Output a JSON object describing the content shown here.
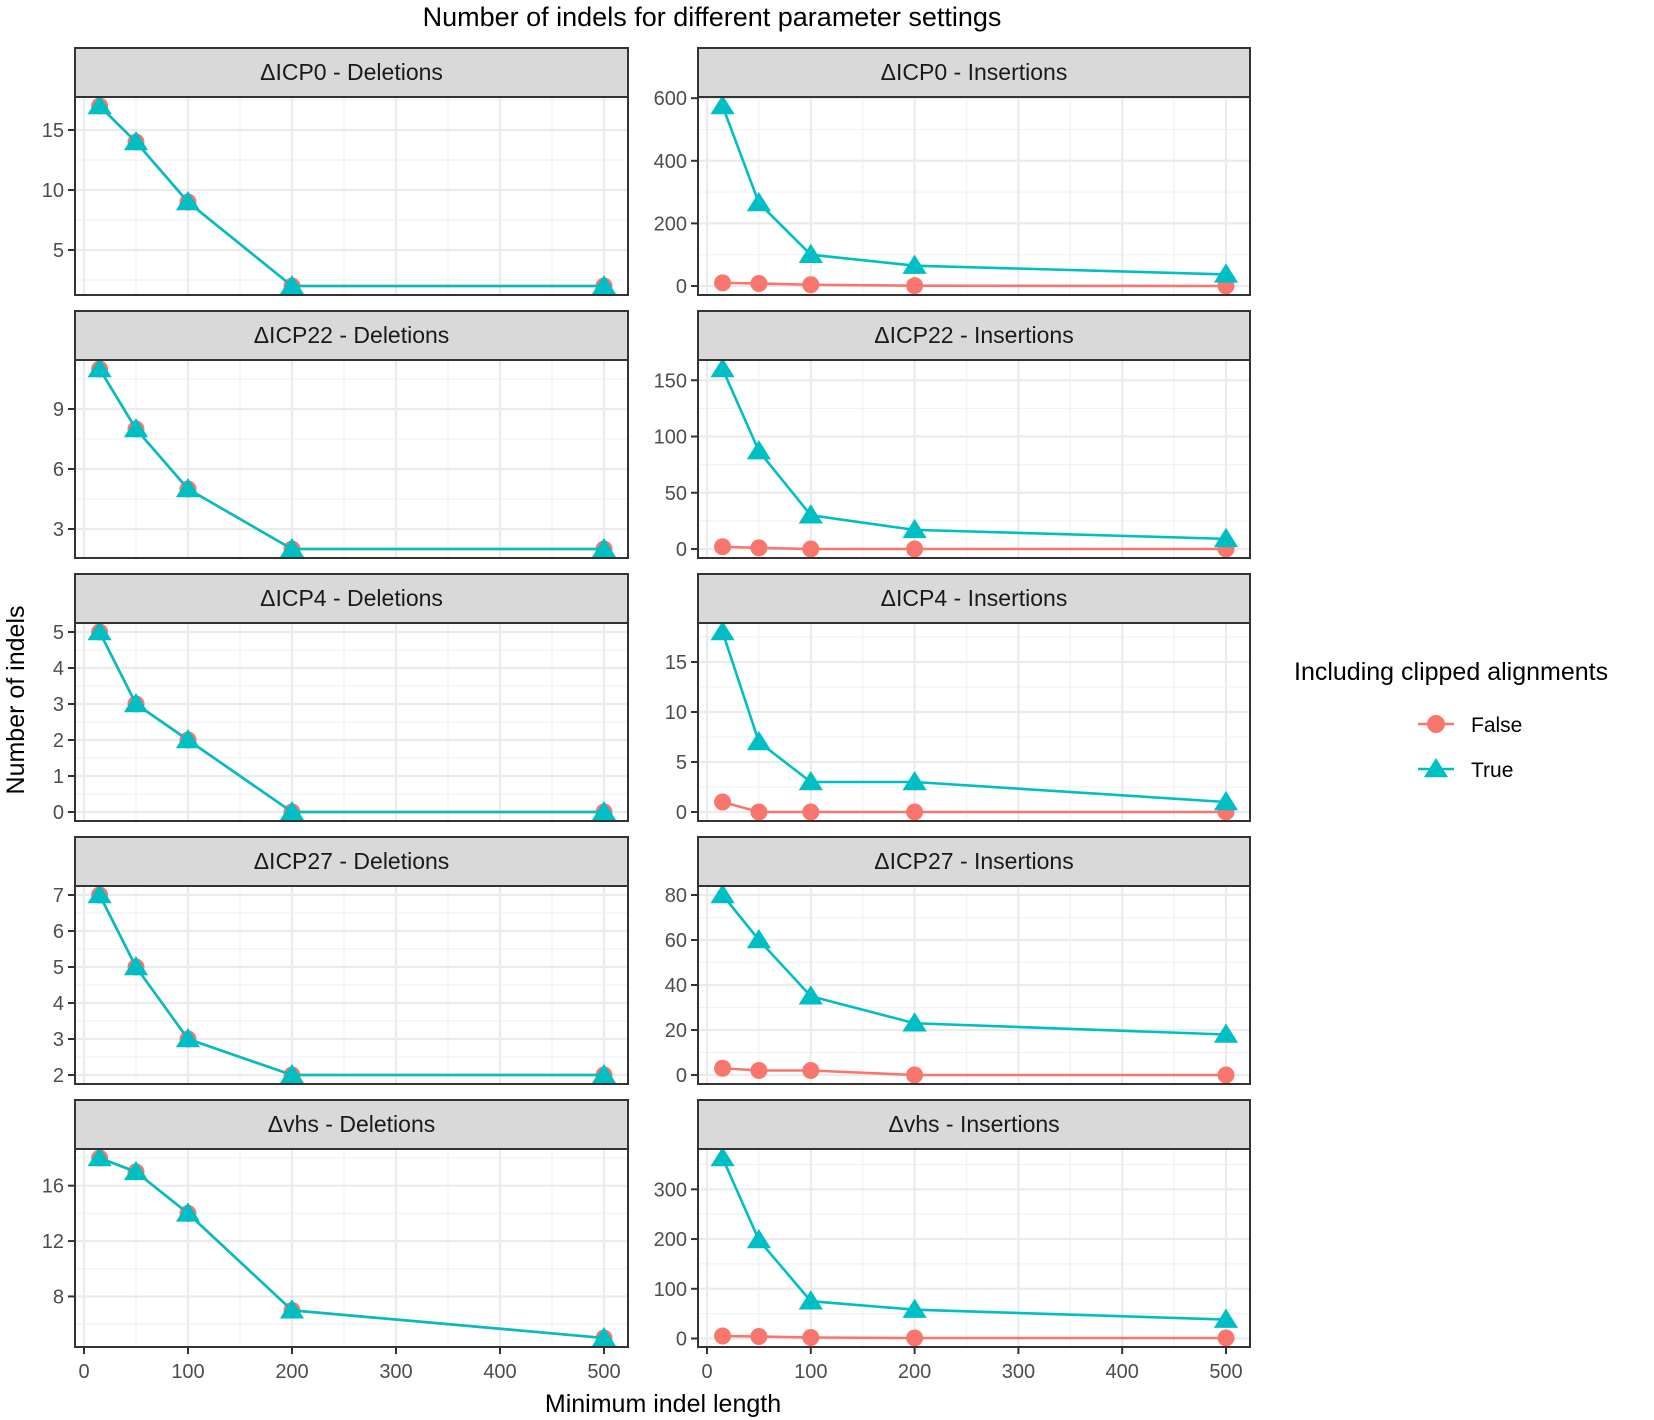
{
  "chart_data": {
    "type": "line",
    "title": "Number of indels for different parameter settings",
    "xlabel": "Minimum indel length",
    "ylabel": "Number of indels",
    "x": [
      15,
      50,
      100,
      200,
      500
    ],
    "xlim": [
      0,
      500
    ],
    "xticks": [
      0,
      100,
      200,
      300,
      400,
      500
    ],
    "grid": true,
    "legend": {
      "title": "Including clipped alignments",
      "position": "right",
      "entries": [
        {
          "label": "False",
          "color": "#F8766D",
          "marker": "circle"
        },
        {
          "label": "True",
          "color": "#00BFC4",
          "marker": "triangle"
        }
      ]
    },
    "panels": [
      {
        "strip": "ΔICP0 - Deletions",
        "yticks": [
          5,
          10,
          15
        ],
        "series": [
          {
            "name": "False",
            "values": [
              17,
              14,
              9,
              2,
              2
            ]
          },
          {
            "name": "True",
            "values": [
              17,
              14,
              9,
              2,
              2
            ]
          }
        ]
      },
      {
        "strip": "ΔICP0 - Insertions",
        "yticks": [
          0,
          200,
          400,
          600
        ],
        "series": [
          {
            "name": "False",
            "values": [
              10,
              8,
              4,
              1,
              0
            ]
          },
          {
            "name": "True",
            "values": [
              575,
              265,
              100,
              65,
              37
            ]
          }
        ]
      },
      {
        "strip": "ΔICP22 - Deletions",
        "yticks": [
          3,
          6,
          9
        ],
        "series": [
          {
            "name": "False",
            "values": [
              11,
              8,
              5,
              2,
              2
            ]
          },
          {
            "name": "True",
            "values": [
              11,
              8,
              5,
              2,
              2
            ]
          }
        ]
      },
      {
        "strip": "ΔICP22 - Insertions",
        "yticks": [
          0,
          50,
          100,
          150
        ],
        "series": [
          {
            "name": "False",
            "values": [
              2,
              1,
              0,
              0,
              0
            ]
          },
          {
            "name": "True",
            "values": [
              160,
              87,
              30,
              17,
              9
            ]
          }
        ]
      },
      {
        "strip": "ΔICP4 - Deletions",
        "yticks": [
          0,
          1,
          2,
          3,
          4,
          5
        ],
        "series": [
          {
            "name": "False",
            "values": [
              5,
              3,
              2,
              0,
              0
            ]
          },
          {
            "name": "True",
            "values": [
              5,
              3,
              2,
              0,
              0
            ]
          }
        ]
      },
      {
        "strip": "ΔICP4 - Insertions",
        "yticks": [
          0,
          5,
          10,
          15
        ],
        "series": [
          {
            "name": "False",
            "values": [
              1,
              0,
              0,
              0,
              0
            ]
          },
          {
            "name": "True",
            "values": [
              18,
              7,
              3,
              3,
              1
            ]
          }
        ]
      },
      {
        "strip": "ΔICP27 - Deletions",
        "yticks": [
          2,
          3,
          4,
          5,
          6,
          7
        ],
        "series": [
          {
            "name": "False",
            "values": [
              7,
              5,
              3,
              2,
              2
            ]
          },
          {
            "name": "True",
            "values": [
              7,
              5,
              3,
              2,
              2
            ]
          }
        ]
      },
      {
        "strip": "ΔICP27 - Insertions",
        "yticks": [
          0,
          20,
          40,
          60,
          80
        ],
        "series": [
          {
            "name": "False",
            "values": [
              3,
              2,
              2,
              0,
              0
            ]
          },
          {
            "name": "True",
            "values": [
              80,
              60,
              35,
              23,
              18
            ]
          }
        ]
      },
      {
        "strip": "Δvhs - Deletions",
        "yticks": [
          8,
          12,
          16
        ],
        "series": [
          {
            "name": "False",
            "values": [
              18,
              17,
              14,
              7,
              5
            ]
          },
          {
            "name": "True",
            "values": [
              18,
              17,
              14,
              7,
              5
            ]
          }
        ]
      },
      {
        "strip": "Δvhs - Insertions",
        "yticks": [
          0,
          100,
          200,
          300
        ],
        "series": [
          {
            "name": "False",
            "values": [
              5,
              4,
              2,
              1,
              1
            ]
          },
          {
            "name": "True",
            "values": [
              363,
              198,
              75,
              58,
              38
            ]
          }
        ]
      }
    ]
  }
}
